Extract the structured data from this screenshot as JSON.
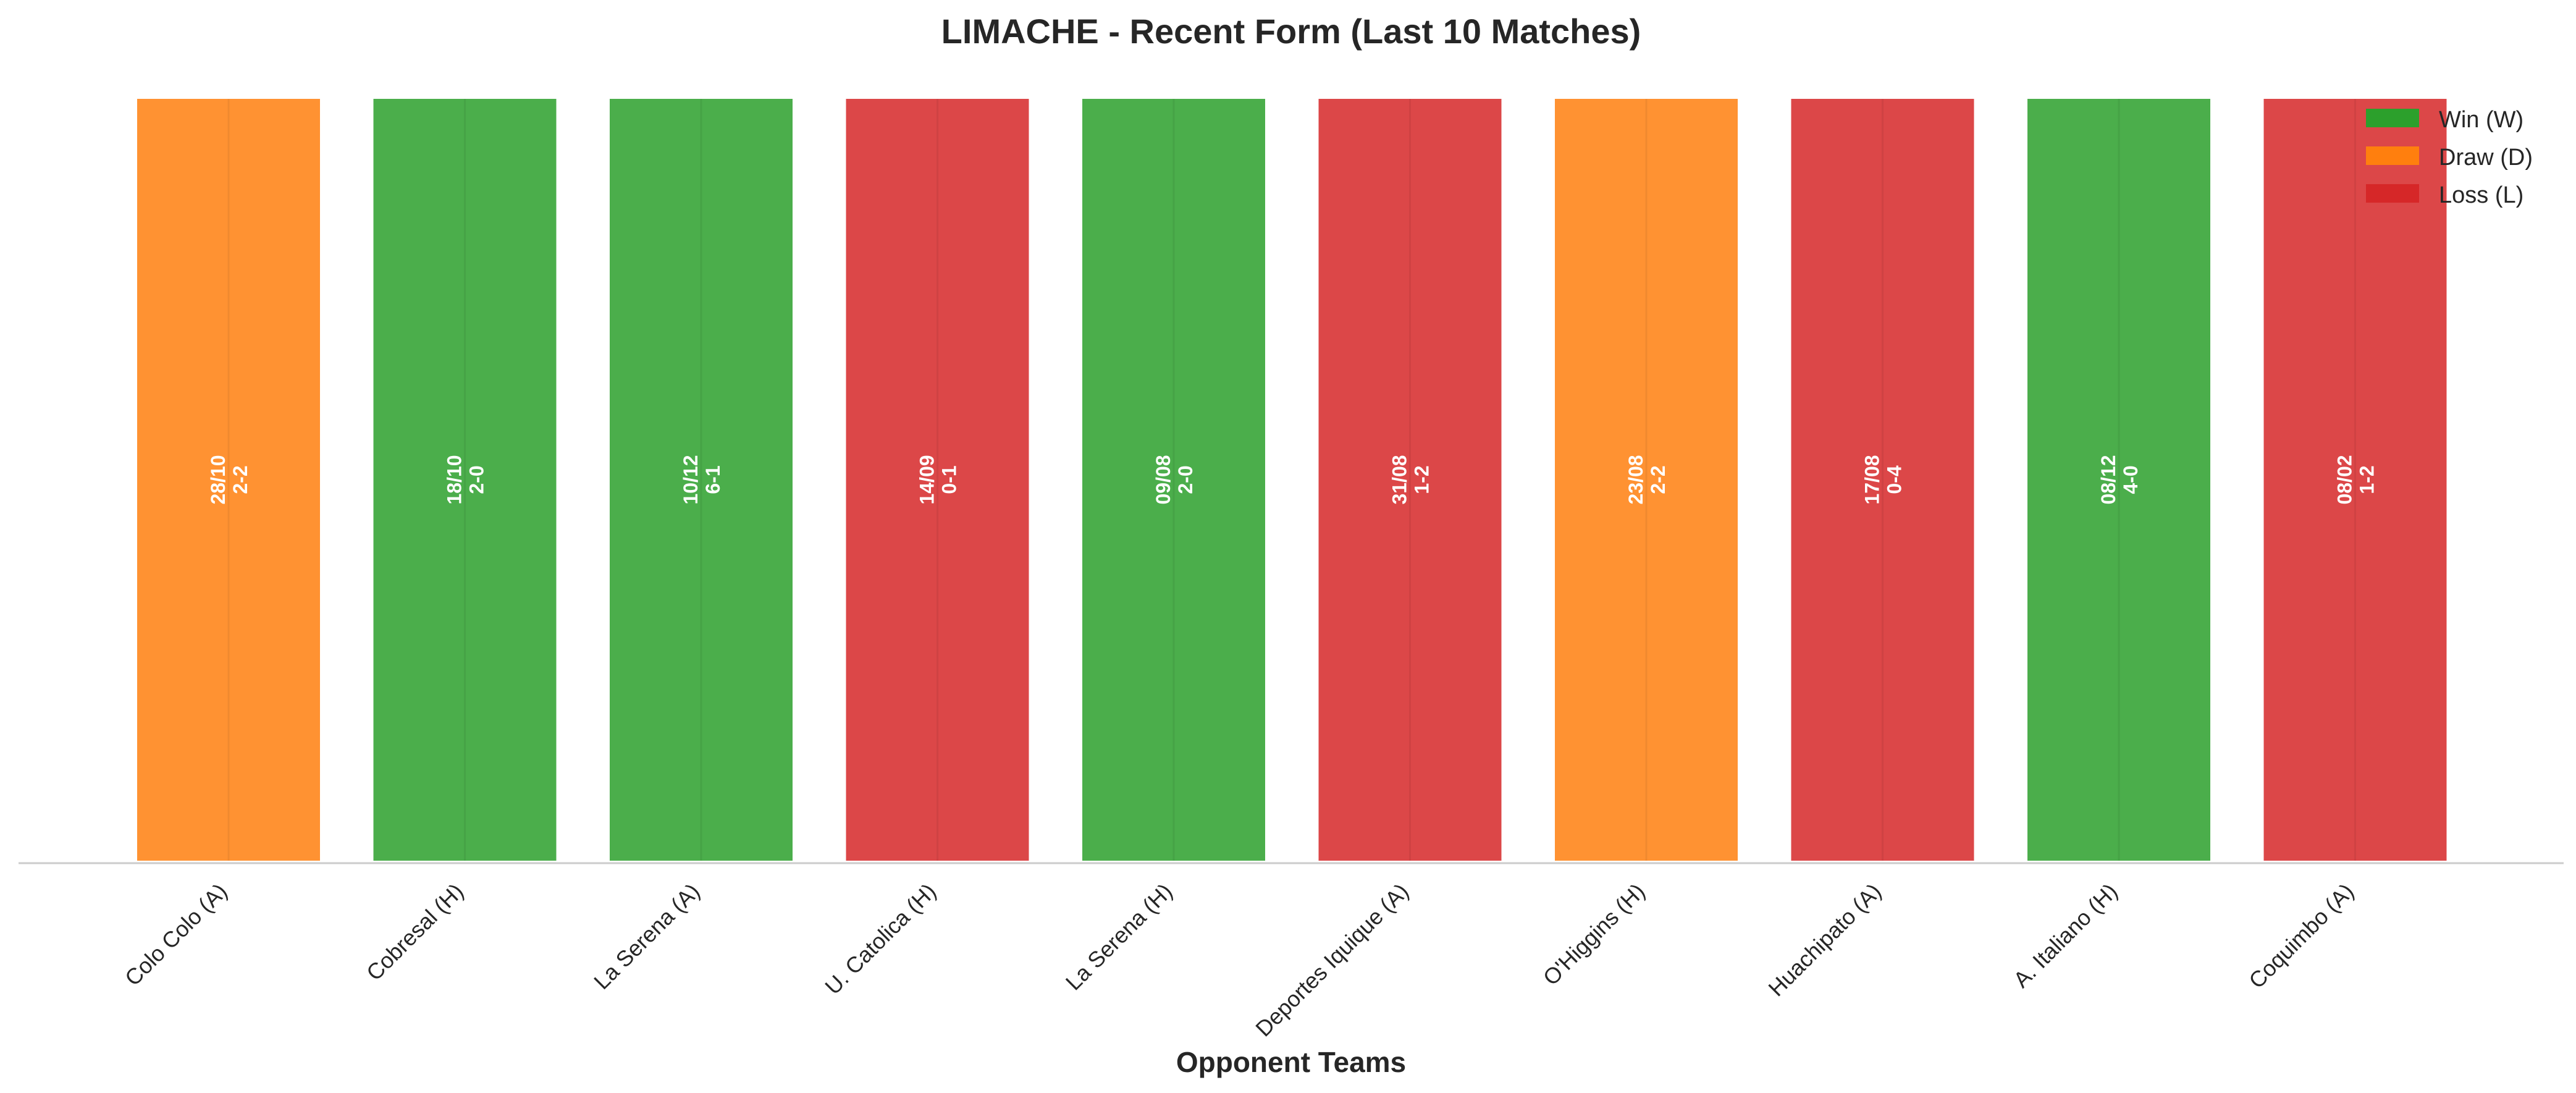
{
  "chart_data": {
    "type": "bar",
    "title": "LIMACHE - Recent Form (Last 10 Matches)",
    "xlabel": "Opponent Teams",
    "ylabel": "",
    "categories": [
      "Colo Colo (A)",
      "Cobresal (H)",
      "La Serena (A)",
      "U. Catolica (H)",
      "La Serena (H)",
      "Deportes Iquique (A)",
      "O'Higgins (H)",
      "Huachipato (A)",
      "A. Italiano (H)",
      "Coquimbo (A)"
    ],
    "matches": [
      {
        "opponent": "Colo Colo (A)",
        "date": "28/10",
        "score": "2-2",
        "result": "D"
      },
      {
        "opponent": "Cobresal (H)",
        "date": "18/10",
        "score": "2-0",
        "result": "W"
      },
      {
        "opponent": "La Serena (A)",
        "date": "10/12",
        "score": "6-1",
        "result": "W"
      },
      {
        "opponent": "U. Catolica (H)",
        "date": "14/09",
        "score": "0-1",
        "result": "L"
      },
      {
        "opponent": "La Serena (H)",
        "date": "09/08",
        "score": "2-0",
        "result": "W"
      },
      {
        "opponent": "Deportes Iquique (A)",
        "date": "31/08",
        "score": "1-2",
        "result": "L"
      },
      {
        "opponent": "O'Higgins (H)",
        "date": "23/08",
        "score": "2-2",
        "result": "D"
      },
      {
        "opponent": "Huachipato (A)",
        "date": "17/08",
        "score": "0-4",
        "result": "L"
      },
      {
        "opponent": "A. Italiano (H)",
        "date": "08/12",
        "score": "4-0",
        "result": "W"
      },
      {
        "opponent": "Coquimbo (A)",
        "date": "08/02",
        "score": "1-2",
        "result": "L"
      }
    ],
    "values": [
      1,
      1,
      1,
      1,
      1,
      1,
      1,
      1,
      1,
      1
    ],
    "ylim": [
      0,
      1
    ],
    "grid": false,
    "legend": {
      "placement": "top-right",
      "entries": [
        {
          "key": "W",
          "label": "Win (W)",
          "color": "#2ca02c"
        },
        {
          "key": "D",
          "label": "Draw (D)",
          "color": "#ff7f0e"
        },
        {
          "key": "L",
          "label": "Loss (L)",
          "color": "#d62728"
        }
      ]
    },
    "colors": {
      "W": "#2ca02c",
      "D": "#ff7f0e",
      "L": "#d62728"
    }
  }
}
